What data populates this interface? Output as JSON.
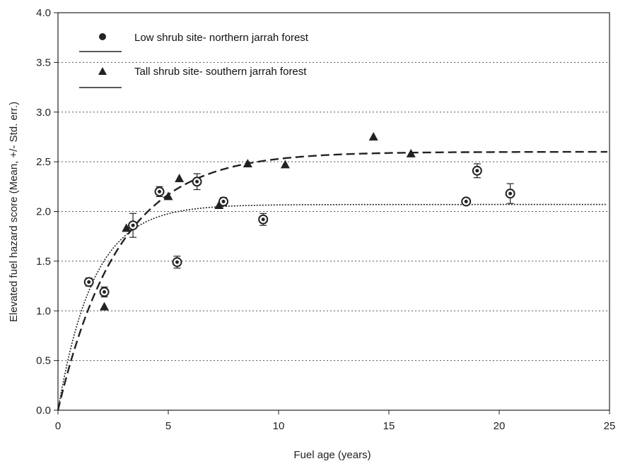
{
  "chart_data": {
    "type": "scatter",
    "xlabel": "Fuel age (years)",
    "ylabel": "Elevated fuel hazard score (Mean, +/- Std. err.)",
    "xlim": [
      0,
      25
    ],
    "ylim": [
      0,
      4.0
    ],
    "xticks": [
      "0",
      "5",
      "10",
      "15",
      "20",
      "25"
    ],
    "yticks": [
      "0.0",
      "0.5",
      "1.0",
      "1.5",
      "2.0",
      "2.5",
      "3.0",
      "3.5",
      "4.0"
    ],
    "grid": "horizontal dotted",
    "legend_position": "top-left",
    "series": [
      {
        "name": "Low shrub site- northern jarrah forest",
        "marker": "circle",
        "color": "#222222",
        "points": [
          {
            "x": 1.4,
            "y": 1.29,
            "err": 0.04
          },
          {
            "x": 2.1,
            "y": 1.19,
            "err": 0.05
          },
          {
            "x": 3.4,
            "y": 1.86,
            "err": 0.12
          },
          {
            "x": 4.6,
            "y": 2.2,
            "err": 0.05
          },
          {
            "x": 5.4,
            "y": 1.49,
            "err": 0.06
          },
          {
            "x": 6.3,
            "y": 2.3,
            "err": 0.08
          },
          {
            "x": 7.5,
            "y": 2.1,
            "err": 0.04
          },
          {
            "x": 9.3,
            "y": 1.92,
            "err": 0.06
          },
          {
            "x": 18.5,
            "y": 2.1,
            "err": 0.03
          },
          {
            "x": 19.0,
            "y": 2.41,
            "err": 0.07
          },
          {
            "x": 20.5,
            "y": 2.18,
            "err": 0.1
          }
        ],
        "fit_asymptote": 2.07,
        "fit_rate": 0.62,
        "fit_style": "dotted"
      },
      {
        "name": "Tall shrub site- southern jarrah forest",
        "marker": "triangle",
        "color": "#222222",
        "points": [
          {
            "x": 2.1,
            "y": 1.04
          },
          {
            "x": 3.1,
            "y": 1.83
          },
          {
            "x": 5.0,
            "y": 2.15
          },
          {
            "x": 5.5,
            "y": 2.33
          },
          {
            "x": 7.3,
            "y": 2.06
          },
          {
            "x": 8.6,
            "y": 2.48
          },
          {
            "x": 10.3,
            "y": 2.47
          },
          {
            "x": 14.3,
            "y": 2.75
          },
          {
            "x": 16.0,
            "y": 2.58
          }
        ],
        "fit_asymptote": 2.6,
        "fit_rate": 0.36,
        "fit_style": "dashed"
      }
    ]
  }
}
